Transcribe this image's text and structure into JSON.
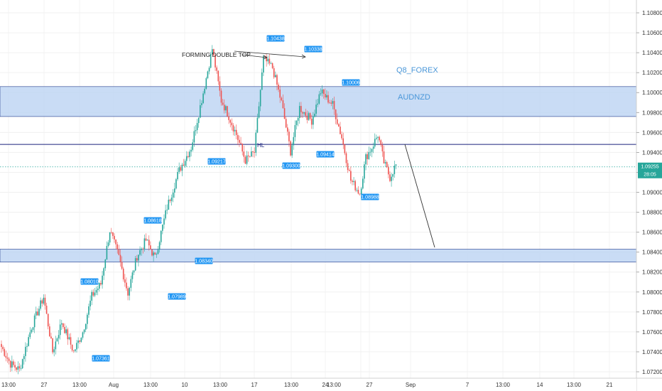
{
  "chart_data": {
    "type": "candlestick",
    "symbol_text": "AUDNZD",
    "watermark": "Q8_FOREX",
    "annotation": "FORMING DOUBLE TOP",
    "hl_label": "HL",
    "ylim": [
      1.0715,
      1.109
    ],
    "y_ticks": [
      "1.10800",
      "1.10600",
      "1.10400",
      "1.10200",
      "1.10000",
      "1.09800",
      "1.09600",
      "1.09400",
      "1.09200",
      "1.09000",
      "1.08800",
      "1.08600",
      "1.08400",
      "1.08200",
      "1.08000",
      "1.07800",
      "1.07600",
      "1.07400",
      "1.07200"
    ],
    "x_ticks": [
      "13:00",
      "27",
      "13:00",
      "Aug",
      "13:00",
      "10",
      "13:00",
      "17",
      "13:00",
      "24",
      "13:00",
      "27",
      "Sep",
      "7",
      "13:00",
      "14",
      "13:00",
      "21"
    ],
    "current_price": "1.09255",
    "countdown": "28:05",
    "resistance_zone": [
      1.0976,
      1.1006
    ],
    "support_zone": [
      1.083,
      1.0843
    ],
    "hl_line": 1.0948,
    "price_labels": [
      "1.10438",
      "1.10338",
      "1.10006",
      "1.09217",
      "1.09300",
      "1.09414",
      "1.08618",
      "1.08340",
      "1.08988",
      "1.08010",
      "1.07989",
      "1.07361"
    ],
    "colors": {
      "up": "#26a69a",
      "down": "#ef5350",
      "zone": "#bbd3f3",
      "zone_edge": "#1e3a8a",
      "label_bg": "#2196f3",
      "hl_line": "#1a237e",
      "price_tag": "#26a69a"
    },
    "swings": [
      [
        0,
        1.0745
      ],
      [
        6,
        1.0728
      ],
      [
        12,
        1.0722
      ],
      [
        20,
        1.0765
      ],
      [
        28,
        1.0795
      ],
      [
        34,
        1.074
      ],
      [
        40,
        1.077
      ],
      [
        48,
        1.074
      ],
      [
        54,
        1.076
      ],
      [
        60,
        1.0796
      ],
      [
        66,
        1.0808
      ],
      [
        72,
        1.0862
      ],
      [
        78,
        1.0835
      ],
      [
        84,
        1.0799
      ],
      [
        90,
        1.0836
      ],
      [
        96,
        1.0852
      ],
      [
        102,
        1.0834
      ],
      [
        110,
        1.0885
      ],
      [
        118,
        1.0922
      ],
      [
        126,
        1.0945
      ],
      [
        134,
        1.1
      ],
      [
        140,
        1.1044
      ],
      [
        146,
        1.0992
      ],
      [
        150,
        1.098
      ],
      [
        156,
        1.0958
      ],
      [
        162,
        1.0932
      ],
      [
        168,
        1.094
      ],
      [
        174,
        1.1034
      ],
      [
        180,
        1.1025
      ],
      [
        186,
        1.099
      ],
      [
        192,
        1.0941
      ],
      [
        198,
        1.0985
      ],
      [
        206,
        1.0972
      ],
      [
        212,
        1.1001
      ],
      [
        220,
        1.0988
      ],
      [
        226,
        1.0955
      ],
      [
        232,
        1.0912
      ],
      [
        238,
        1.0899
      ],
      [
        242,
        1.0935
      ],
      [
        246,
        1.0945
      ],
      [
        250,
        1.0958
      ],
      [
        254,
        1.093
      ],
      [
        258,
        1.0915
      ],
      [
        262,
        1.0928
      ]
    ]
  }
}
